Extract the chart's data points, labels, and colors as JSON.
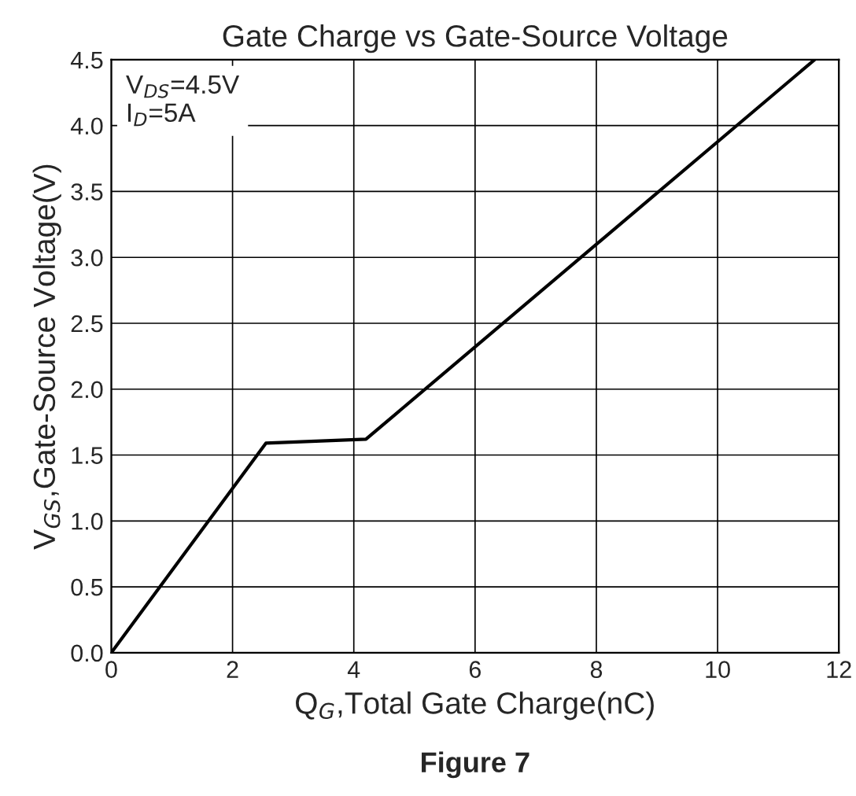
{
  "chart_data": {
    "type": "line",
    "title": "Gate Charge vs Gate-Source Voltage",
    "xlabel": "Q$_{G}$,Total Gate Charge(nC)",
    "ylabel": "V$_{GS}$,Gate-Source Voltage(V)",
    "series": [
      {
        "color": "#000000",
        "x": [
          0,
          2.55,
          4.2,
          11.6
        ],
        "values": [
          0,
          1.59,
          1.62,
          4.5
        ]
      }
    ],
    "xlim": [
      0,
      12
    ],
    "xticks": [
      0,
      2,
      4,
      6,
      8,
      10,
      12
    ],
    "ylim": [
      0,
      4.5
    ],
    "yticks": [
      {
        "value": 0,
        "label": "0.0"
      },
      {
        "value": 0.5,
        "label": "0.5"
      },
      {
        "value": 1,
        "label": "1.0"
      },
      {
        "value": 1.5,
        "label": "1.5"
      },
      {
        "value": 2,
        "label": "2.0"
      },
      {
        "value": 2.5,
        "label": "2.5"
      },
      {
        "value": 3,
        "label": "3.0"
      },
      {
        "value": 3.5,
        "label": "3.5"
      },
      {
        "value": 4,
        "label": "4.0"
      },
      {
        "value": 4.5,
        "label": "4.5"
      }
    ],
    "grid": true,
    "legend": false,
    "marker": "none",
    "line_style": "solid",
    "annotations": [
      "V$_{DS}$=4.5V",
      "I$_{D}$=5A",
      "Figure 7"
    ]
  }
}
